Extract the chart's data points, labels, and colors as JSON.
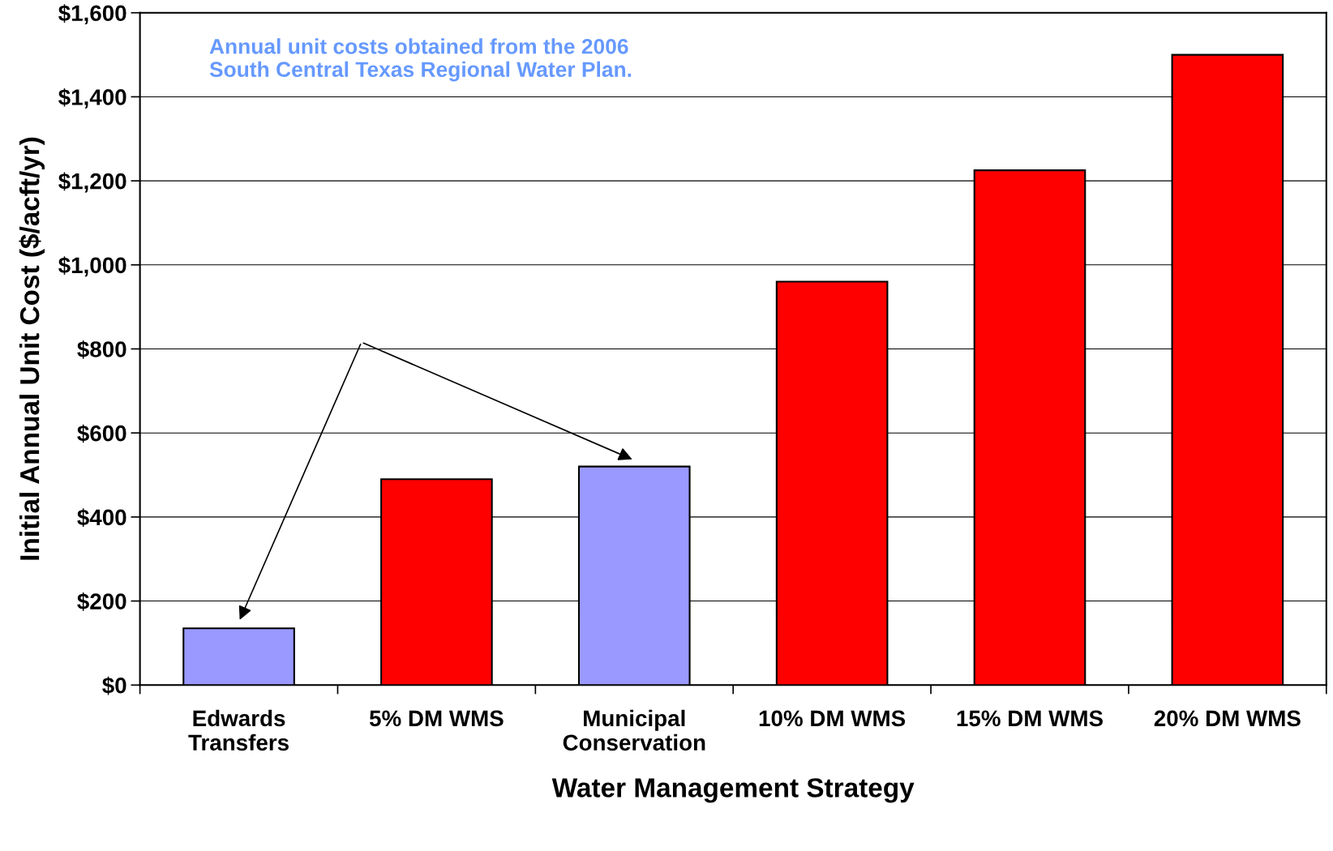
{
  "chart_data": {
    "type": "bar",
    "xlabel": "Water Management Strategy",
    "ylabel": "Initial Annual Unit Cost ($/acft/yr)",
    "categories": [
      "Edwards\nTransfers",
      "5% DM WMS",
      "Municipal\nConservation",
      "10% DM WMS",
      "15% DM WMS",
      "20% DM WMS"
    ],
    "values": [
      135,
      490,
      520,
      960,
      1225,
      1500
    ],
    "colors": [
      "#9999ff",
      "#ff0000",
      "#9999ff",
      "#ff0000",
      "#ff0000",
      "#ff0000"
    ],
    "ylim": [
      0,
      1600
    ],
    "yticks": [
      {
        "value": 0,
        "label": "$0"
      },
      {
        "value": 200,
        "label": "$200"
      },
      {
        "value": 400,
        "label": "$400"
      },
      {
        "value": 600,
        "label": "$600"
      },
      {
        "value": 800,
        "label": "$800"
      },
      {
        "value": 1000,
        "label": "$1,000"
      },
      {
        "value": 1200,
        "label": "$1,200"
      },
      {
        "value": 1400,
        "label": "$1,400"
      },
      {
        "value": 1600,
        "label": "$1,600"
      }
    ],
    "grid": "y",
    "annotations": [
      "Annual unit costs obtained from the 2006\nSouth Central Texas Regional Water Plan."
    ]
  }
}
